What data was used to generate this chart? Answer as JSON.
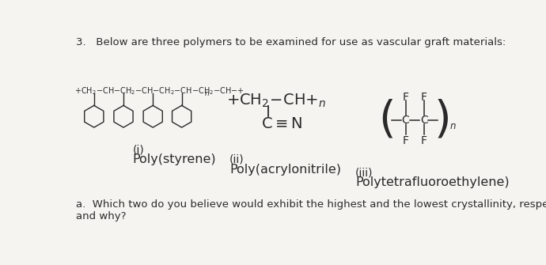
{
  "title_text": "3.   Below are three polymers to be examined for use as vascular graft materials:",
  "title_fontsize": 9.5,
  "question_text": "a.  Which two do you believe would exhibit the highest and the lowest crystallinity, respectively,\nand why?",
  "question_fontsize": 9.5,
  "poly1_label_roman": "(i)",
  "poly1_label_name": "Poly(styrene)",
  "poly2_label_roman": "(ii)",
  "poly2_label_name": "Poly(acrylonitrile)",
  "poly3_label_roman": "(iii)",
  "poly3_label_name": "Polytetrafluoroethylene)",
  "bg_color": "#f5f4f0",
  "text_color": "#2a2a2a",
  "label_fontsize": 10,
  "name_fontsize": 11.5
}
